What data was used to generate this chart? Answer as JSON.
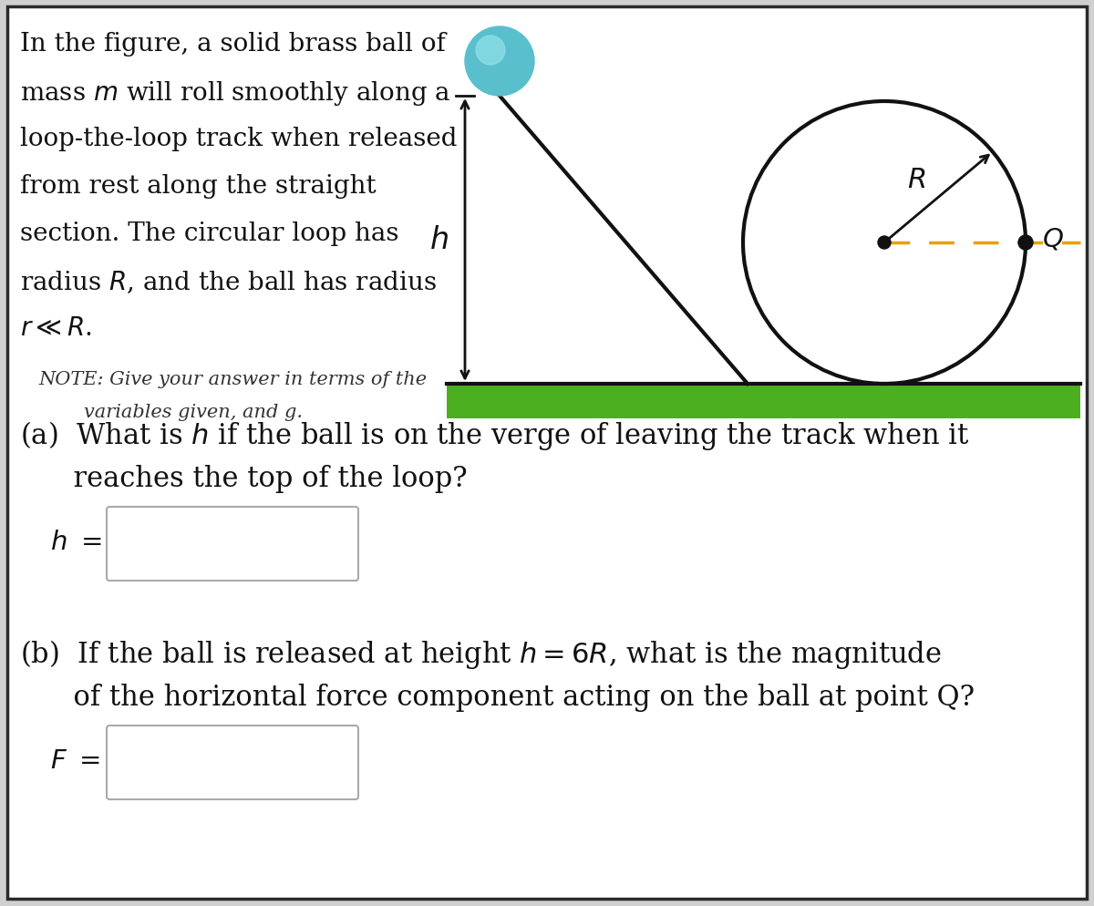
{
  "bg_color": "#d0d0d0",
  "inner_bg": "#ffffff",
  "border_color": "#2a2a2a",
  "green_color": "#4caf20",
  "ball_color_main": "#5abfcc",
  "ball_color_light": "#8fe0e8",
  "track_color": "#111111",
  "dashed_color": "#e8a000",
  "text_color": "#111111",
  "note_color": "#333333",
  "box_border": "#aaaaaa",
  "para_lines": [
    "In the figure, a solid brass ball of",
    "mass $m$ will roll smoothly along a",
    "loop-the-loop track when released",
    "from rest along the straight",
    "section. The circular loop has",
    "radius $R$, and the ball has radius",
    "$r \\ll R$."
  ],
  "note1": "NOTE: Give your answer in terms of the",
  "note2": "variables given, and g.",
  "part_a1": "(a)  What is $h$ if the ball is on the verge of leaving the track when it",
  "part_a2": "      reaches the top of the loop?",
  "part_a_lbl": "$h\\ =$",
  "part_b1": "(b)  If the ball is released at height $h = 6R$, what is the magnitude",
  "part_b2": "      of the horizontal force component acting on the ball at point Q?",
  "part_b_lbl": "$F\\ =$"
}
